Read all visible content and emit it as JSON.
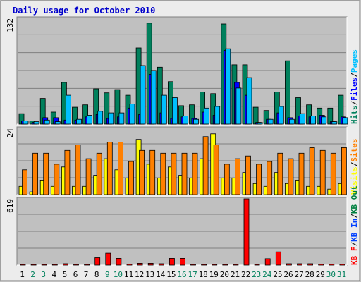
{
  "chart_data": {
    "type": "bar",
    "title": "Daily usage for October 2010",
    "days": [
      1,
      2,
      3,
      4,
      5,
      6,
      7,
      8,
      9,
      10,
      11,
      12,
      13,
      14,
      15,
      16,
      17,
      18,
      19,
      20,
      21,
      22,
      23,
      24,
      25,
      26,
      27,
      28,
      29,
      30,
      31
    ],
    "weekend_days": [
      2,
      3,
      9,
      10,
      16,
      17,
      23,
      24,
      30,
      31
    ],
    "colors": {
      "hits": "#00805c",
      "files": "#0000ff",
      "pages": "#00c0ff",
      "visits": "#ffff00",
      "sites": "#ff8000",
      "kb_in": "#008040",
      "kb_out": "#0040ff",
      "kb_f": "#ff0000",
      "weekday_label": "#000000",
      "weekend_label": "#00805c"
    },
    "panels": [
      {
        "name": "hits-files-pages",
        "ymax_label": "132",
        "ymax": 132,
        "legend": [
          {
            "text": "Hits",
            "color": "#00805c"
          },
          {
            "text": "/",
            "color": "#000000"
          },
          {
            "text": "Files",
            "color": "#0000ff"
          },
          {
            "text": "/",
            "color": "#000000"
          },
          {
            "text": "Pages",
            "color": "#00c0ff"
          }
        ],
        "series": [
          {
            "name": "Hits",
            "color": "#00805c",
            "values": [
              13,
              4,
              32,
              15,
              52,
              21,
              24,
              44,
              39,
              43,
              36,
              95,
              126,
              71,
              53,
              23,
              24,
              40,
              38,
              125,
              74,
              74,
              21,
              17,
              40,
              79,
              33,
              24,
              20,
              20,
              36
            ]
          },
          {
            "name": "Files",
            "color": "#0000ff",
            "values": [
              4,
              2,
              8,
              8,
              5,
              5,
              9,
              12,
              7,
              9,
              20,
              12,
              62,
              14,
              7,
              9,
              7,
              15,
              11,
              92,
              52,
              36,
              2,
              6,
              14,
              8,
              10,
              9,
              11,
              3,
              9
            ]
          },
          {
            "name": "Pages",
            "color": "#00c0ff",
            "values": [
              4,
              3,
              5,
              3,
              36,
              6,
              11,
              16,
              14,
              14,
              25,
              73,
              67,
              36,
              33,
              10,
              6,
              20,
              22,
              94,
              45,
              58,
              2,
              6,
              22,
              6,
              13,
              10,
              9,
              3,
              8
            ]
          }
        ]
      },
      {
        "name": "visits-sites",
        "ymax_label": "24",
        "ymax": 24,
        "legend": [
          {
            "text": "Visits",
            "color": "#ffff00"
          },
          {
            "text": "/",
            "color": "#000000"
          },
          {
            "text": "Sites",
            "color": "#ff8000"
          }
        ],
        "series": [
          {
            "name": "Visits",
            "color": "#ffff00",
            "values": [
              3,
              1,
              5,
              3,
              10,
              3,
              3,
              7,
              13,
              9,
              6,
              20,
              11,
              6,
              10,
              7,
              6,
              13,
              22,
              6,
              6,
              8,
              4,
              3,
              8,
              4,
              5,
              3,
              3,
              2,
              4
            ]
          },
          {
            "name": "Sites",
            "color": "#ff8000",
            "values": [
              9,
              15,
              15,
              11,
              16,
              18,
              13,
              15,
              19,
              19,
              12,
              16,
              16,
              15,
              15,
              15,
              15,
              21,
              18,
              11,
              13,
              14,
              11,
              12,
              15,
              13,
              15,
              17,
              16,
              15,
              17
            ]
          }
        ]
      },
      {
        "name": "kbytes",
        "ymax_label": "619",
        "ymax": 619,
        "legend": [
          {
            "text": "KB F",
            "color": "#ff0000"
          },
          {
            "text": "/",
            "color": "#000000"
          },
          {
            "text": "KB In",
            "color": "#0040ff"
          },
          {
            "text": "/",
            "color": "#000000"
          },
          {
            "text": "KB Out",
            "color": "#008040"
          }
        ],
        "series": [
          {
            "name": "KB F",
            "color": "#ff0000",
            "values": [
              7,
              7,
              7,
              7,
              13,
              7,
              7,
              69,
              111,
              63,
              10,
              17,
              17,
              13,
              63,
              63,
              7,
              7,
              7,
              7,
              7,
              619,
              7,
              60,
              124,
              13,
              13,
              13,
              10,
              10,
              10
            ]
          }
        ]
      }
    ]
  }
}
